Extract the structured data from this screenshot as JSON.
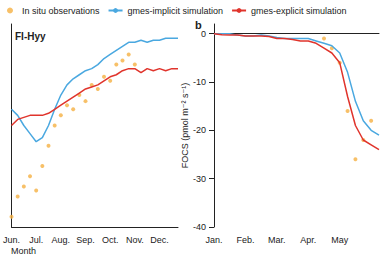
{
  "chart_data": [
    {
      "type": "line",
      "title": "FI-Hyy",
      "x_label": "Month",
      "legend": "top",
      "tick_labels": "x",
      "categories": [
        "Jun.",
        null,
        null,
        null,
        "Jul.",
        null,
        null,
        null,
        "Aug.",
        null,
        null,
        null,
        "Sep.",
        null,
        null,
        null,
        "Oct.",
        null,
        null,
        null,
        "Nov.",
        null,
        null,
        null,
        "Dec.",
        null,
        null,
        null
      ],
      "ylim": [
        0,
        100
      ],
      "series": [
        {
          "name": "In situ observations",
          "type": "scatter",
          "color": "#f5b042",
          "marker": "circle",
          "values": [
            5,
            15,
            20,
            25,
            18,
            30,
            40,
            50,
            55,
            60,
            58,
            65,
            62,
            70,
            68,
            74,
            72,
            80,
            82,
            85,
            80,
            null,
            null,
            null,
            null,
            null,
            null,
            null
          ]
        },
        {
          "name": "gmes-implicit simulation",
          "type": "line",
          "color": "#4aa8e0",
          "values": [
            58,
            55,
            50,
            46,
            42,
            44,
            50,
            58,
            65,
            70,
            73,
            75,
            77,
            78,
            80,
            83,
            85,
            87,
            89,
            91,
            91,
            92,
            91,
            92,
            92,
            93,
            93,
            93
          ]
        },
        {
          "name": "gmes-explicit simulation",
          "type": "line",
          "color": "#e0342c",
          "values": [
            50,
            53,
            54,
            55,
            55,
            55,
            56,
            58,
            60,
            62,
            64,
            66,
            68,
            69,
            70,
            72,
            74,
            75,
            77,
            78,
            78,
            76,
            78,
            77,
            78,
            77,
            78,
            78
          ]
        }
      ]
    },
    {
      "type": "line",
      "title": "b",
      "y_label": "FOCS (pmol m⁻² s⁻¹)",
      "categories": [
        "Jan.",
        null,
        null,
        null,
        "Feb.",
        null,
        null,
        null,
        "Mar.",
        null,
        null,
        null,
        "Apr.",
        null,
        null,
        null,
        "May",
        null,
        null,
        null,
        null,
        null
      ],
      "ylim": [
        -40,
        2
      ],
      "yticks": [
        -40,
        -30,
        -20,
        -10,
        0
      ],
      "series": [
        {
          "name": "In situ observations",
          "type": "scatter",
          "color": "#f5b042",
          "marker": "circle",
          "values": [
            null,
            null,
            null,
            null,
            null,
            null,
            null,
            null,
            null,
            null,
            null,
            null,
            null,
            null,
            -1,
            -3,
            -6,
            -16,
            -26,
            -22,
            -18,
            null
          ]
        },
        {
          "name": "gmes-implicit simulation",
          "type": "line",
          "color": "#4aa8e0",
          "values": [
            0,
            0,
            0,
            -0.3,
            -0.5,
            -0.5,
            -0.3,
            -0.5,
            -0.8,
            -1,
            -1,
            -1,
            -1,
            -1.5,
            -2,
            -2.5,
            -4,
            -8,
            -14,
            -18,
            -20,
            -21
          ]
        },
        {
          "name": "gmes-explicit simulation",
          "type": "line",
          "color": "#e0342c",
          "values": [
            0,
            -0.2,
            -0.3,
            -0.3,
            -0.5,
            -0.5,
            -0.5,
            -0.6,
            -1,
            -1,
            -1.2,
            -1.5,
            -1.5,
            -2,
            -3,
            -4,
            -6,
            -13,
            -19,
            -22,
            -23,
            -24
          ]
        }
      ]
    }
  ]
}
